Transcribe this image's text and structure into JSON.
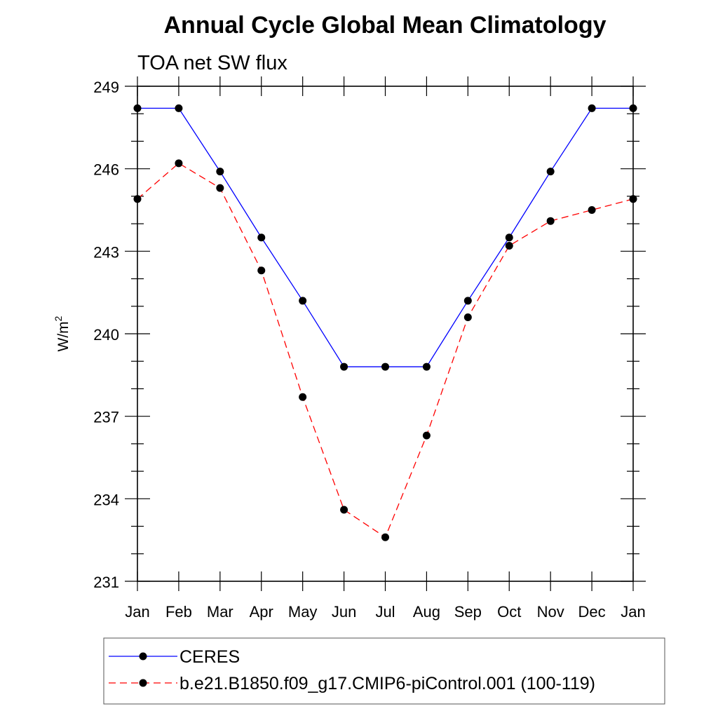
{
  "chart_data": {
    "type": "line",
    "title": "Annual Cycle Global Mean Climatology",
    "subtitle": "TOA net SW flux",
    "xlabel": "",
    "ylabel": "W/m",
    "ylabel_superscript": "2",
    "categories": [
      "Jan",
      "Feb",
      "Mar",
      "Apr",
      "May",
      "Jun",
      "Jul",
      "Aug",
      "Sep",
      "Oct",
      "Nov",
      "Dec",
      "Jan"
    ],
    "ylim": [
      231,
      249
    ],
    "yticks": [
      231,
      234,
      237,
      240,
      243,
      246,
      249
    ],
    "y_minor_step": 1,
    "grid": false,
    "legend_position": "bottom",
    "series": [
      {
        "name": "CERES",
        "color": "#0000ff",
        "line_style": "solid",
        "marker": "filled-circle",
        "values": [
          248.2,
          248.2,
          245.9,
          243.5,
          241.2,
          238.8,
          238.8,
          238.8,
          241.2,
          243.5,
          245.9,
          248.2,
          248.2
        ]
      },
      {
        "name": "b.e21.B1850.f09_g17.CMIP6-piControl.001 (100-119)",
        "color": "#ff0000",
        "line_style": "dashed",
        "marker": "filled-circle",
        "values": [
          244.9,
          246.2,
          245.3,
          242.3,
          237.7,
          233.6,
          232.6,
          236.3,
          240.6,
          243.2,
          244.1,
          244.5,
          244.9
        ]
      }
    ]
  }
}
